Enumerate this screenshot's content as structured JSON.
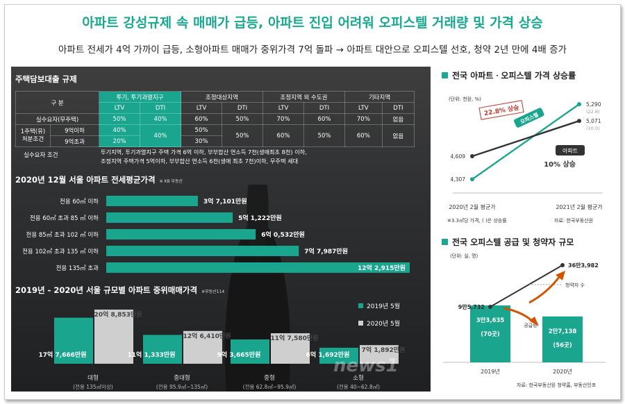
{
  "header": {
    "title": "아파트 강성규제 속 매매가 급등, 아파트 진입 어려워 오피스텔 거래량 및 가격 상승",
    "subtitle": "아파트 전세가 4억 가까이 급등, 소형아파트 매매가 중위가격 7억 돌파 → 아파트 대안으로 오피스텔 선호, 청약 2년 만에 4배 증가"
  },
  "loan_table": {
    "title": "주택담보대출 규제",
    "col_group_label": "구  분",
    "groups": [
      "투기, 투기과열지구",
      "조정대상지역",
      "조정지역 외 수도권",
      "기타지역"
    ],
    "sub_headers": [
      "LTV",
      "DTI",
      "LTV",
      "DTI",
      "LTV",
      "DTI",
      "LTV",
      "DTI"
    ],
    "row1_label": "실수요자(무주택)",
    "row1": [
      "50%",
      "40%",
      "60%",
      "50%",
      "70%",
      "60%",
      "70%",
      "없음"
    ],
    "row2_label_a": "1주택(유)",
    "row2_label_b": "처분조건",
    "row2_sub_a": "9억이하",
    "row2_sub_b": "9억초과",
    "row2_ltv_a": "40%",
    "row2_ltv_b": "20%",
    "row2_dti": "40%",
    "row2_adj_ltv_a": "50%",
    "row2_adj_ltv_b": "30%",
    "row2_adj_dti": "50%",
    "row2_rest": [
      "60%",
      "50%",
      "60%",
      "없음"
    ],
    "cond_label": "실수요자 조건",
    "cond_line1": "투기지역, 투기과열지구 주택 가격 6억 이하, 부부합산 연소득 7천(생애최초 8천) 이하,",
    "cond_line2": "조정지역 주택가격 5억이하, 부부합산 연소득 6천(생애 최초 7천)이하, 무주택 세대"
  },
  "jeonse": {
    "title": "2020년 12월 서울 아파트 전세평균가격",
    "source": "※ KB 부동산"
  },
  "median": {
    "title": "2019년 - 2020년 서울 규모별 아파트 중위매매가격",
    "source": "※부동산114",
    "legend": [
      "2019년 5월",
      "2020년 5월"
    ]
  },
  "price_chart": {
    "title": "전국 아파트ㆍ오피스텔 가격 상승률",
    "unit": "(단위: 천원, %)",
    "note": "※3.3㎡당 가격, ( )은 상승률",
    "source": "자료: 한국부동산원",
    "callout_officetel": "22.8% 상승",
    "callout_apt": "10% 상승",
    "label_officetel": "오피스텔",
    "label_apt": "아파트",
    "officetel_end_rate": "(22.8)",
    "apt_end_rate": "(10.0)"
  },
  "supply_chart": {
    "title": "전국 오피스텔 공급 및 청약자 규모",
    "unit": "(단위: 실, 명)",
    "bar1_main": "3만3,635",
    "bar1_sub": "(70곳)",
    "bar2_main": "2만7,138",
    "bar2_sub": "(56곳)",
    "label_supply": "공급량",
    "label_applicants": "청약자 수",
    "source": "자료: 한국부동산원 청약홈, 부동산인포"
  },
  "watermark": "news1",
  "chart_data": [
    {
      "type": "bar",
      "title": "2020년 12월 서울 아파트 전세평균가격",
      "categories": [
        "전용 60㎡ 이하",
        "전용 60㎡ 초과 85 ㎡ 이하",
        "전용 85㎡ 초과 102 ㎡ 이하",
        "전용 102㎡ 초과 135 ㎡ 이하",
        "전용 135㎡ 초과"
      ],
      "values": [
        37101,
        51222,
        60532,
        77987,
        122915
      ],
      "value_labels": [
        "3억 7,101만원",
        "5억 1,222만원",
        "6억 0,532만원",
        "7억 7,987만원",
        "12억 2,915만원"
      ],
      "color": "#1aa58e"
    },
    {
      "type": "bar",
      "title": "2019년 - 2020년 서울 규모별 아파트 중위매매가격",
      "categories": [
        "대형",
        "중대형",
        "중형",
        "소형"
      ],
      "category_notes": [
        "(전용 135㎡이상)",
        "(전용 95.9㎡~135㎡)",
        "(전용 62.8㎡~95.9㎡)",
        "(전용 40~62.8㎡)"
      ],
      "series": [
        {
          "name": "2019년 5월",
          "values": [
            177666,
            111333,
            93665,
            61692
          ],
          "value_labels": [
            "17억 7,666만원",
            "11억 1,333만원",
            "9억 3,665만원",
            "6억 1,692만원"
          ],
          "color": "#1aa58e"
        },
        {
          "name": "2020년 5월",
          "values": [
            208853,
            126410,
            117580,
            71892
          ],
          "value_labels": [
            "20억 8,853만원",
            "12억 6,410만원",
            "11억 7,580만원",
            "7억 1,892만원"
          ],
          "color": "#cfcfcf"
        }
      ]
    },
    {
      "type": "line",
      "title": "전국 아파트ㆍ오피스텔 가격 상승률",
      "x": [
        "2020년 2월 평균가",
        "2021년 2월 평균가"
      ],
      "series": [
        {
          "name": "오피스텔",
          "values": [
            4307,
            5290
          ],
          "color": "#1aa58e"
        },
        {
          "name": "아파트",
          "values": [
            4609,
            5071
          ],
          "color": "#333333"
        }
      ]
    },
    {
      "type": "bar",
      "title": "전국 오피스텔 공급 및 청약자 규모",
      "categories": [
        "2019년",
        "2020년"
      ],
      "series": [
        {
          "name": "공급량",
          "values": [
            33635,
            27138
          ],
          "value_labels": [
            "3만3,635",
            "2만7,138"
          ],
          "color": "#1aa58e"
        },
        {
          "name": "청약자 수",
          "type": "line",
          "values": [
            95732,
            363982
          ],
          "value_labels": [
            "9만5,732",
            "36만3,982"
          ],
          "color": "#333333"
        }
      ]
    }
  ]
}
